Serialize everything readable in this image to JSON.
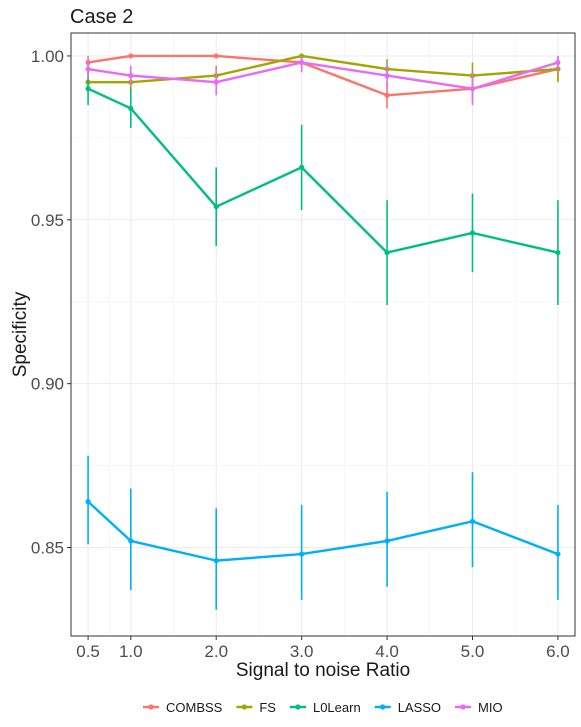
{
  "chart_data": {
    "type": "line",
    "title": "Case 2",
    "xlabel": "Signal to noise Ratio",
    "ylabel": "Specificity",
    "x": [
      0.5,
      1.0,
      2.0,
      3.0,
      4.0,
      5.0,
      6.0
    ],
    "x_tick_labels": [
      "0.5",
      "1.0",
      "2.0",
      "3.0",
      "4.0",
      "5.0",
      "6.0"
    ],
    "y_ticks": [
      0.85,
      0.9,
      0.95,
      1.0
    ],
    "y_tick_labels": [
      "0.85",
      "0.90",
      "0.95",
      "1.00"
    ],
    "xlim": [
      0.3,
      6.2
    ],
    "ylim": [
      0.823,
      1.007
    ],
    "grid": true,
    "legend_position": "bottom",
    "series": [
      {
        "name": "COMBSS",
        "color": "#F8766D",
        "values": [
          0.998,
          1.0,
          1.0,
          0.998,
          0.988,
          0.99,
          0.996
        ],
        "lower": [
          0.996,
          1.0,
          1.0,
          0.996,
          0.984,
          0.986,
          0.993
        ],
        "upper": [
          1.0,
          1.0,
          1.0,
          1.0,
          0.992,
          0.994,
          0.999
        ]
      },
      {
        "name": "FS",
        "color": "#A3A500",
        "values": [
          0.992,
          0.992,
          0.994,
          1.0,
          0.996,
          0.994,
          0.996
        ],
        "lower": [
          0.989,
          0.989,
          0.991,
          1.0,
          0.993,
          0.99,
          0.992
        ],
        "upper": [
          0.995,
          0.995,
          0.997,
          1.0,
          0.999,
          0.998,
          1.0
        ]
      },
      {
        "name": "L0Learn",
        "color": "#00BF7D",
        "values": [
          0.99,
          0.984,
          0.954,
          0.966,
          0.94,
          0.946,
          0.94
        ],
        "lower": [
          0.985,
          0.978,
          0.942,
          0.953,
          0.924,
          0.934,
          0.924
        ],
        "upper": [
          0.995,
          0.99,
          0.966,
          0.979,
          0.956,
          0.958,
          0.956
        ]
      },
      {
        "name": "LASSO",
        "color": "#00B0F6",
        "values": [
          0.864,
          0.852,
          0.846,
          0.848,
          0.852,
          0.858,
          0.848
        ],
        "lower": [
          0.851,
          0.837,
          0.831,
          0.834,
          0.838,
          0.844,
          0.834
        ],
        "upper": [
          0.878,
          0.868,
          0.862,
          0.863,
          0.867,
          0.873,
          0.863
        ]
      },
      {
        "name": "MIO",
        "color": "#E76BF3",
        "values": [
          0.996,
          0.994,
          0.992,
          0.998,
          0.994,
          0.99,
          0.998
        ],
        "lower": [
          0.993,
          0.991,
          0.988,
          0.995,
          0.99,
          0.985,
          0.995
        ],
        "upper": [
          0.999,
          0.997,
          0.996,
          1.0,
          0.998,
          0.995,
          1.0
        ]
      }
    ]
  }
}
